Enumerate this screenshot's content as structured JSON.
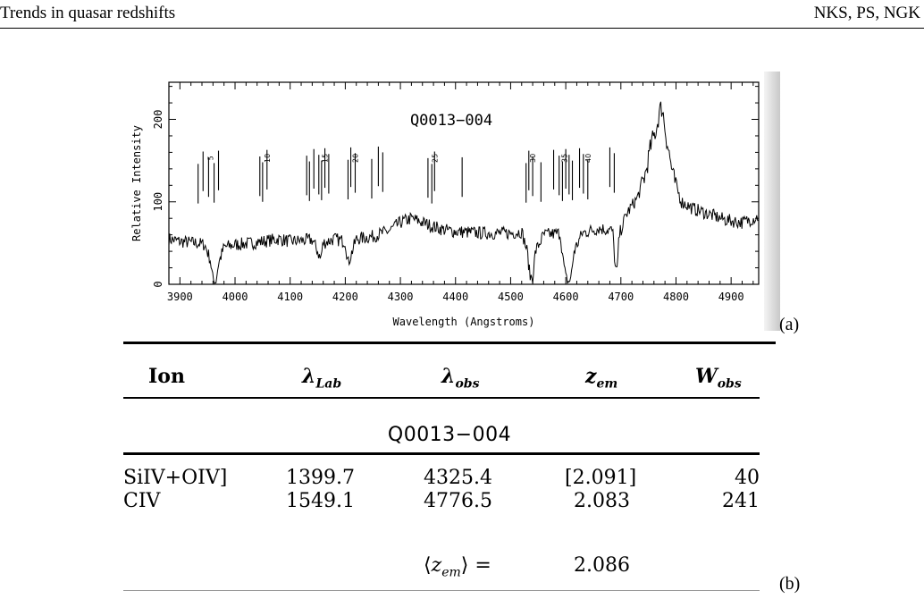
{
  "header": {
    "left": "Trends in quasar redshifts",
    "right": "NKS, PS, NGK"
  },
  "figure_a": {
    "label": "(a)",
    "chart_data": {
      "type": "line",
      "title": "Q0013−004",
      "xlabel": "Wavelength (Angstroms)",
      "ylabel": "Relative Intensity",
      "xlim": [
        3880,
        4950
      ],
      "ylim": [
        0,
        245
      ],
      "x_ticks": [
        3900,
        4000,
        4100,
        4200,
        4300,
        4400,
        4500,
        4600,
        4700,
        4800,
        4900
      ],
      "y_ticks": [
        0,
        100,
        200
      ],
      "grid": false,
      "anchor_points": [
        [
          3880,
          55
        ],
        [
          3900,
          52
        ],
        [
          3930,
          50
        ],
        [
          3945,
          48
        ],
        [
          3955,
          30
        ],
        [
          3960,
          5
        ],
        [
          3965,
          3
        ],
        [
          3970,
          25
        ],
        [
          3980,
          45
        ],
        [
          4000,
          48
        ],
        [
          4030,
          50
        ],
        [
          4050,
          52
        ],
        [
          4080,
          55
        ],
        [
          4100,
          52
        ],
        [
          4140,
          54
        ],
        [
          4150,
          40
        ],
        [
          4155,
          30
        ],
        [
          4160,
          50
        ],
        [
          4180,
          55
        ],
        [
          4200,
          52
        ],
        [
          4205,
          25
        ],
        [
          4210,
          35
        ],
        [
          4220,
          55
        ],
        [
          4250,
          58
        ],
        [
          4280,
          65
        ],
        [
          4300,
          75
        ],
        [
          4320,
          80
        ],
        [
          4340,
          75
        ],
        [
          4360,
          70
        ],
        [
          4380,
          66
        ],
        [
          4400,
          64
        ],
        [
          4450,
          62
        ],
        [
          4500,
          62
        ],
        [
          4520,
          64
        ],
        [
          4530,
          40
        ],
        [
          4535,
          10
        ],
        [
          4540,
          8
        ],
        [
          4545,
          40
        ],
        [
          4560,
          60
        ],
        [
          4590,
          62
        ],
        [
          4595,
          30
        ],
        [
          4600,
          8
        ],
        [
          4605,
          2
        ],
        [
          4610,
          10
        ],
        [
          4615,
          40
        ],
        [
          4630,
          62
        ],
        [
          4660,
          68
        ],
        [
          4685,
          65
        ],
        [
          4690,
          20
        ],
        [
          4693,
          15
        ],
        [
          4697,
          60
        ],
        [
          4710,
          85
        ],
        [
          4730,
          105
        ],
        [
          4745,
          135
        ],
        [
          4755,
          170
        ],
        [
          4765,
          190
        ],
        [
          4770,
          210
        ],
        [
          4775,
          215
        ],
        [
          4782,
          180
        ],
        [
          4795,
          130
        ],
        [
          4810,
          100
        ],
        [
          4830,
          92
        ],
        [
          4860,
          85
        ],
        [
          4890,
          78
        ],
        [
          4920,
          75
        ],
        [
          4950,
          82
        ]
      ],
      "marker_labels": [
        {
          "text": "5",
          "x": 3955
        },
        {
          "text": "10",
          "x": 4058
        },
        {
          "text": "15",
          "x": 4163
        },
        {
          "text": "20",
          "x": 4218
        },
        {
          "text": "25",
          "x": 4362
        },
        {
          "text": "30",
          "x": 4540
        },
        {
          "text": "35",
          "x": 4597
        },
        {
          "text": "40",
          "x": 4640
        }
      ],
      "marker_lines": [
        3933,
        3942,
        3952,
        3962,
        3970,
        4045,
        4050,
        4058,
        4130,
        4135,
        4143,
        4152,
        4157,
        4163,
        4170,
        4205,
        4210,
        4218,
        4248,
        4260,
        4268,
        4350,
        4357,
        4362,
        4412,
        4528,
        4533,
        4540,
        4555,
        4578,
        4588,
        4594,
        4600,
        4606,
        4612,
        4625,
        4632,
        4640,
        4680,
        4688
      ]
    }
  },
  "figure_b": {
    "label": "(b)",
    "columns": [
      "Ion",
      "λ",
      "Lab",
      "λ",
      "obs",
      "z",
      "em",
      "W",
      "obs"
    ],
    "object": "Q0013−004",
    "rows": [
      {
        "ion": "SiIV+OIV]",
        "lab": "1399.7",
        "obs": "4325.4",
        "z": "[2.091]",
        "w": "40"
      },
      {
        "ion": "CIV",
        "lab": "1549.1",
        "obs": "4776.5",
        "z": "2.083",
        "w": "241"
      }
    ],
    "mean": {
      "open": "⟨",
      "z": "z",
      "em": "em",
      "close": "⟩ =",
      "value": "2.086"
    }
  }
}
